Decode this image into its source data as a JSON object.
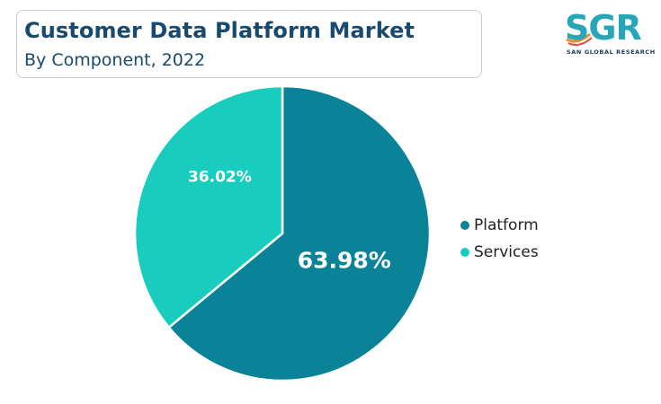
{
  "header": {
    "title": "Customer Data Platform Market",
    "subtitle": "By Component, 2022"
  },
  "logo": {
    "text": "SGR",
    "caption": "SAN GLOBAL RESEARCH"
  },
  "chart_data": {
    "type": "pie",
    "title": "Customer Data Platform Market",
    "subtitle": "By Component, 2022",
    "categories": [
      "Platform",
      "Services"
    ],
    "values": [
      63.98,
      36.02
    ],
    "labels": [
      "63.98%",
      "36.02%"
    ],
    "colors": [
      "#0a8398",
      "#19cdbe"
    ],
    "legend_position": "right",
    "start_angle": "top, clockwise"
  }
}
